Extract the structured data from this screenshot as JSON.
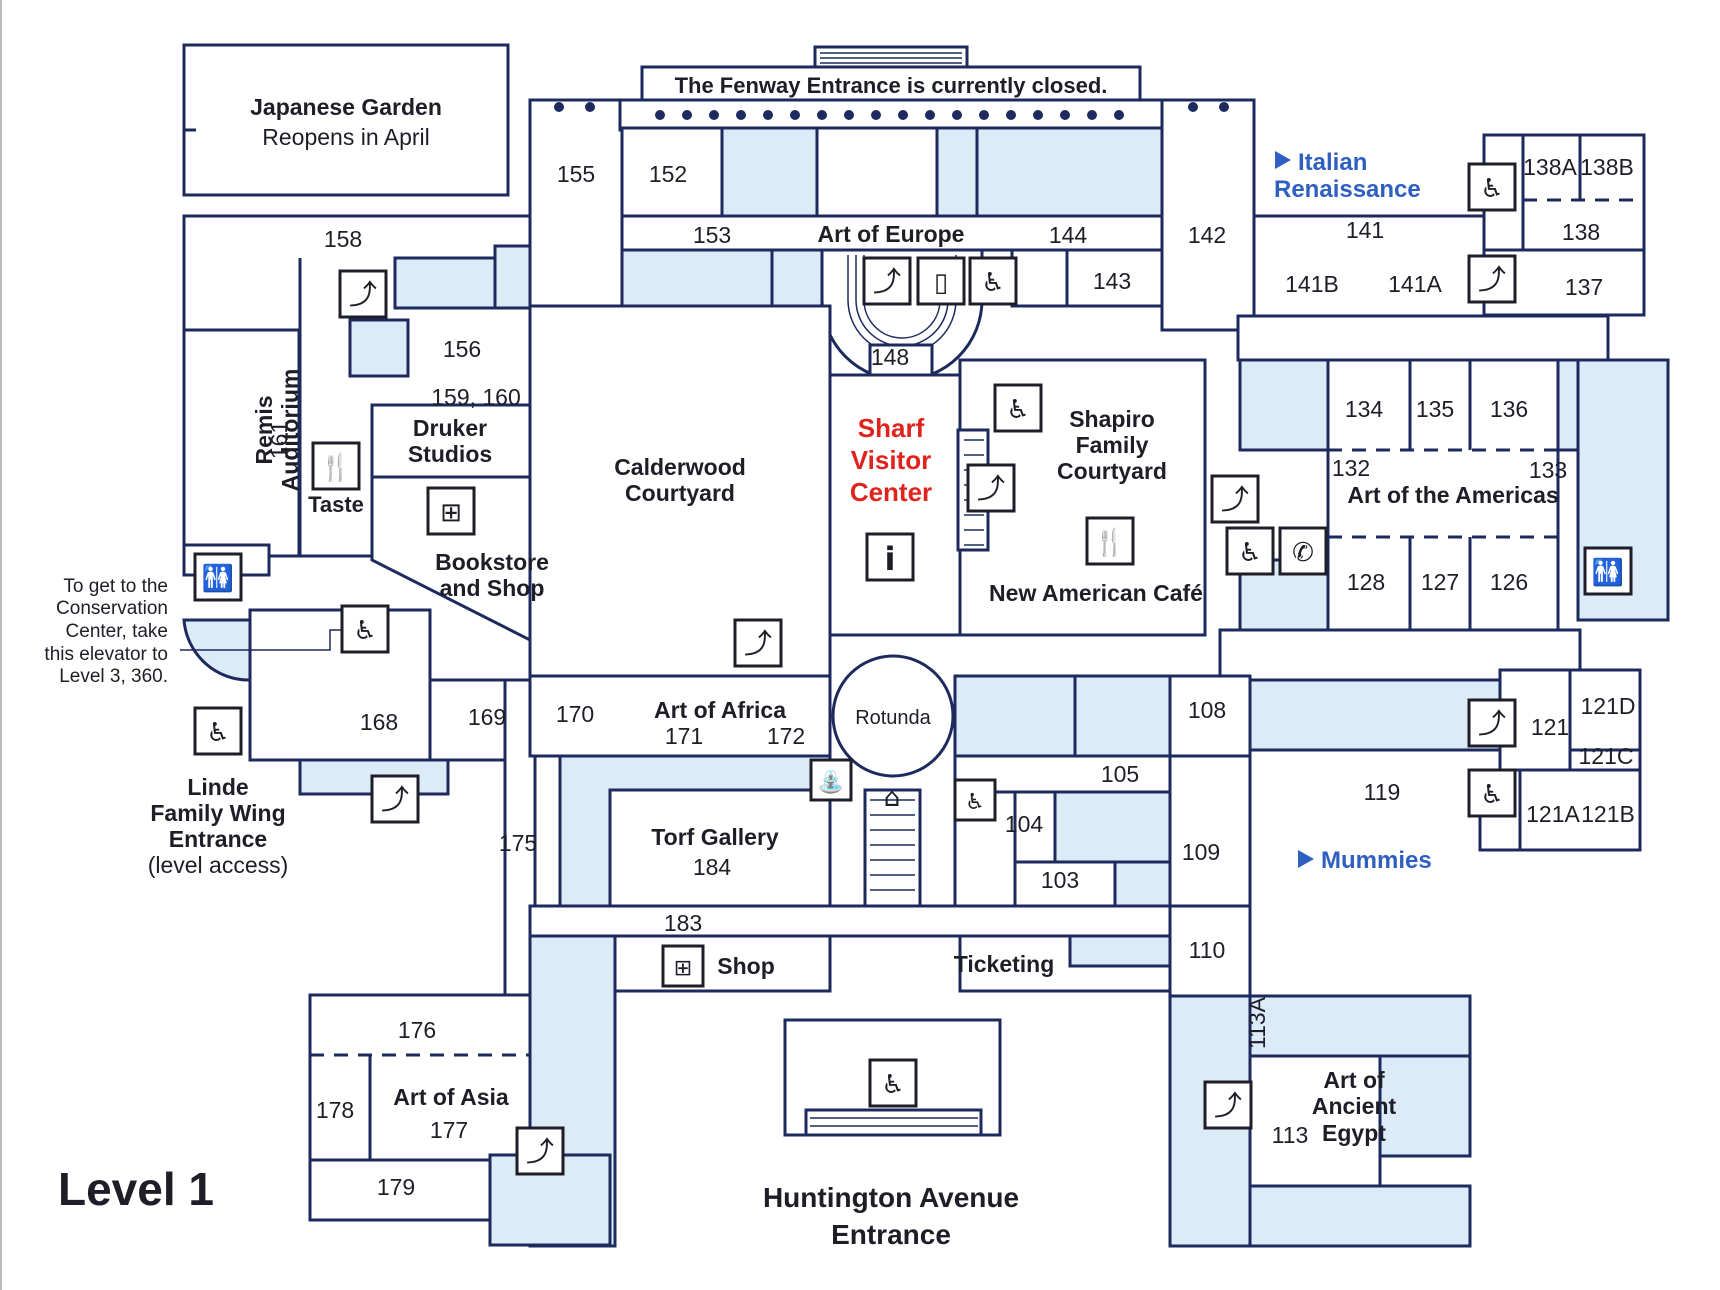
{
  "map": {
    "level_label": "Level 1",
    "colors": {
      "wall": "#1c2a5e",
      "gallery_fill": "#dcebf8",
      "text": "#1e1e28",
      "visitor_center": "#e0231c",
      "wayfinding_link": "#2f5fc1"
    },
    "notices": {
      "fenway_closed": "The Fenway Entrance is currently closed.",
      "japanese_garden_title": "Japanese Garden",
      "japanese_garden_sub": "Reopens in April",
      "conservation_1": "To get to the",
      "conservation_2": "Conservation",
      "conservation_3": "Center, take",
      "conservation_4": "this elevator to",
      "conservation_5": "Level 3, 360."
    },
    "links": {
      "italian_1": "Italian",
      "italian_2": "Renaissance",
      "mummies": "Mummies"
    },
    "areas": {
      "art_of_europe": "Art of Europe",
      "remis_1": "Remis",
      "remis_2": "Auditorium",
      "remis_num": "161",
      "druker_1": "Druker",
      "druker_2": "Studios",
      "taste": "Taste",
      "bookstore_1": "Bookstore",
      "bookstore_2": "and Shop",
      "calderwood_1": "Calderwood",
      "calderwood_2": "Courtyard",
      "sharf_1": "Sharf",
      "sharf_2": "Visitor",
      "sharf_3": "Center",
      "shapiro_1": "Shapiro",
      "shapiro_2": "Family",
      "shapiro_3": "Courtyard",
      "cafe": "New American Café",
      "americas": "Art of the Americas",
      "africa": "Art of Africa",
      "rotunda": "Rotunda",
      "torf": "Torf Gallery",
      "shop": "Shop",
      "ticketing": "Ticketing",
      "asia": "Art of Asia",
      "egypt_1": "Art of",
      "egypt_2": "Ancient",
      "egypt_3": "Egypt",
      "linde_1": "Linde",
      "linde_2": "Family Wing",
      "linde_3": "Entrance",
      "linde_4": "(level access)",
      "huntington_1": "Huntington Avenue",
      "huntington_2": "Entrance"
    },
    "rooms": {
      "r155": "155",
      "r152": "152",
      "r153": "153",
      "r144": "144",
      "r142": "142",
      "r141": "141",
      "r138": "138",
      "r138A": "138A",
      "r138B": "138B",
      "r143": "143",
      "r141B": "141B",
      "r141A": "141A",
      "r137": "137",
      "r158": "158",
      "r156": "156",
      "r159": "159, 160",
      "r148": "148",
      "r134": "134",
      "r135": "135",
      "r136": "136",
      "r132": "132",
      "r133": "133",
      "r128": "128",
      "r127": "127",
      "r126": "126",
      "r168": "168",
      "r169": "169",
      "r170": "170",
      "r171": "171",
      "r172": "172",
      "r108": "108",
      "r121": "121",
      "r121D": "121D",
      "r121C": "121C",
      "r121A": "121A",
      "r121B": "121B",
      "r105": "105",
      "r119": "119",
      "r104": "104",
      "r109": "109",
      "r103": "103",
      "r175": "175",
      "r184": "184",
      "r183": "183",
      "r110": "110",
      "r113A": "113A",
      "r176": "176",
      "r178": "178",
      "r177": "177",
      "r179": "179",
      "r113": "113"
    },
    "icons": [
      "stairs-icon",
      "elevator-accessible-icon",
      "restroom-icon",
      "restaurant-icon",
      "gift-shop-icon",
      "information-icon",
      "coat-check-icon",
      "water-fountain-icon",
      "locker-icon",
      "phone-icon",
      "accessible-icon"
    ]
  }
}
